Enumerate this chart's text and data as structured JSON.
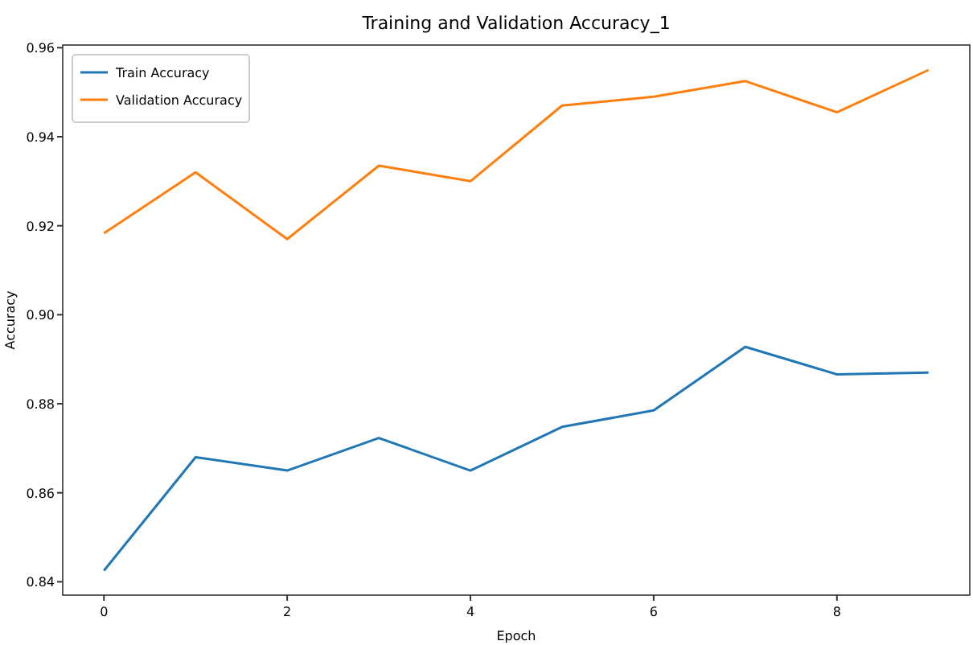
{
  "chart_data": {
    "type": "line",
    "title": "Training and Validation Accuracy_1",
    "xlabel": "Epoch",
    "ylabel": "Accuracy",
    "x": [
      0,
      1,
      2,
      3,
      4,
      5,
      6,
      7,
      8,
      9
    ],
    "series": [
      {
        "name": "Train Accuracy",
        "color": "#1f77b4",
        "values": [
          0.8425,
          0.868,
          0.865,
          0.8723,
          0.865,
          0.8748,
          0.8785,
          0.8928,
          0.8866,
          0.887
        ]
      },
      {
        "name": "Validation Accuracy",
        "color": "#ff7f0e",
        "values": [
          0.9183,
          0.932,
          0.917,
          0.9335,
          0.93,
          0.947,
          0.949,
          0.9525,
          0.9455,
          0.955
        ]
      }
    ],
    "xlim": [
      -0.45,
      9.45
    ],
    "ylim": [
      0.837,
      0.9606
    ],
    "xticks": [
      0,
      2,
      4,
      6,
      8
    ],
    "yticks": [
      {
        "value": 0.84,
        "label": "0.84"
      },
      {
        "value": 0.86,
        "label": "0.86"
      },
      {
        "value": 0.88,
        "label": "0.88"
      },
      {
        "value": 0.9,
        "label": "0.90"
      },
      {
        "value": 0.92,
        "label": "0.92"
      },
      {
        "value": 0.94,
        "label": "0.94"
      },
      {
        "value": 0.96,
        "label": "0.96"
      }
    ],
    "legend": "top left",
    "grid": false
  }
}
